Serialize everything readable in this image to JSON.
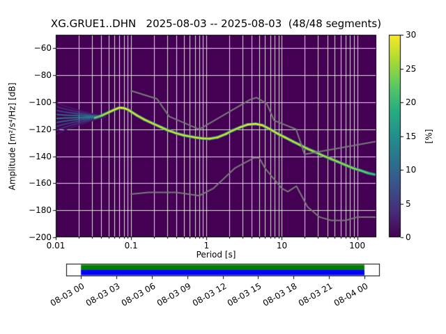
{
  "chart_data": {
    "type": "heatmap",
    "title": "XG.GRUE1..DHN   2025-08-03 -- 2025-08-03  (48/48 segments)",
    "xlabel": "Period [s]",
    "ylabel": "Amplitude [m²/s⁴/Hz] [dB]",
    "xscale": "log",
    "xlim": [
      0.01,
      179
    ],
    "ylim": [
      -200,
      -50
    ],
    "grid": true,
    "background_value_color": "#440154",
    "grid_color": "#ffffff",
    "x_ticks": [
      0.01,
      0.1,
      1,
      10,
      100
    ],
    "x_tick_labels": [
      "0.01",
      "0.1",
      "1",
      "10",
      "100"
    ],
    "y_ticks": [
      -200,
      -180,
      -160,
      -140,
      -120,
      -100,
      -80,
      -60
    ],
    "y_tick_labels": [
      "−200",
      "−180",
      "−160",
      "−140",
      "−120",
      "−100",
      "−80",
      "−60"
    ],
    "colorbar": {
      "label": "[%]",
      "min": 0,
      "max": 30,
      "ticks": [
        0,
        5,
        10,
        15,
        20,
        25,
        30
      ],
      "tick_labels": [
        "0",
        "5",
        "10",
        "15",
        "20",
        "25",
        "30"
      ],
      "colormap": "viridis"
    },
    "series": [
      {
        "name": "psd-mode-line",
        "type": "line",
        "units": [
          "period_s",
          "amplitude_db",
          "percent"
        ],
        "points": [
          [
            0.033,
            -111.5,
            22
          ],
          [
            0.04,
            -110,
            25
          ],
          [
            0.05,
            -107.5,
            28
          ],
          [
            0.06,
            -105.5,
            29
          ],
          [
            0.07,
            -104,
            30
          ],
          [
            0.08,
            -104.3,
            30
          ],
          [
            0.09,
            -105.3,
            29
          ],
          [
            0.1,
            -107,
            29
          ],
          [
            0.12,
            -109.8,
            28
          ],
          [
            0.15,
            -112.8,
            28
          ],
          [
            0.2,
            -116,
            28
          ],
          [
            0.25,
            -118.5,
            28
          ],
          [
            0.3,
            -120.5,
            28
          ],
          [
            0.4,
            -123,
            28
          ],
          [
            0.5,
            -124.5,
            28
          ],
          [
            0.7,
            -126,
            28
          ],
          [
            0.9,
            -126.8,
            28
          ],
          [
            1.1,
            -127,
            28
          ],
          [
            1.4,
            -126,
            28
          ],
          [
            1.8,
            -123.5,
            28
          ],
          [
            2.2,
            -121,
            28
          ],
          [
            2.8,
            -118.5,
            28
          ],
          [
            3.5,
            -116.5,
            29
          ],
          [
            4.5,
            -116,
            30
          ],
          [
            5.5,
            -117,
            29
          ],
          [
            7.0,
            -120,
            29
          ],
          [
            9.0,
            -123.5,
            28
          ],
          [
            11.0,
            -126,
            28
          ],
          [
            14.0,
            -129,
            28
          ],
          [
            18.0,
            -132,
            27
          ],
          [
            22.0,
            -134.5,
            27
          ],
          [
            28.0,
            -137,
            27
          ],
          [
            35.0,
            -139.5,
            26
          ],
          [
            45.0,
            -142,
            26
          ],
          [
            55.0,
            -144,
            26
          ],
          [
            70.0,
            -146.5,
            25
          ],
          [
            90.0,
            -149,
            25
          ],
          [
            110,
            -150.5,
            24
          ],
          [
            140,
            -152.5,
            22
          ],
          [
            170,
            -153.5,
            20
          ]
        ]
      },
      {
        "name": "short-period-spread",
        "type": "fan",
        "period_range": [
          0.01,
          0.045
        ],
        "target_db": -110.8,
        "lines": [
          {
            "db": -100,
            "pct": 2
          },
          {
            "db": -103,
            "pct": 4
          },
          {
            "db": -106,
            "pct": 7
          },
          {
            "db": -109,
            "pct": 11
          },
          {
            "db": -112,
            "pct": 14
          },
          {
            "db": -115,
            "pct": 10
          },
          {
            "db": -118,
            "pct": 6
          },
          {
            "db": -121,
            "pct": 4
          },
          {
            "db": -124,
            "pct": 2
          }
        ]
      },
      {
        "name": "noise-model-high-nhnm",
        "type": "line",
        "color": "#7a7a7a",
        "points": [
          [
            0.1,
            -91.5
          ],
          [
            0.22,
            -97.4
          ],
          [
            0.32,
            -110.5
          ],
          [
            0.8,
            -120.0
          ],
          [
            3.8,
            -98.0
          ],
          [
            4.6,
            -96.5
          ],
          [
            6.3,
            -101.0
          ],
          [
            7.9,
            -113.5
          ],
          [
            15.4,
            -120.0
          ],
          [
            20.0,
            -138.5
          ],
          [
            179,
            -129.0
          ]
        ]
      },
      {
        "name": "noise-model-low-nlnm",
        "type": "line",
        "color": "#7a7a7a",
        "points": [
          [
            0.1,
            -168.0
          ],
          [
            0.17,
            -166.7
          ],
          [
            0.4,
            -166.7
          ],
          [
            0.8,
            -169.2
          ],
          [
            1.24,
            -163.7
          ],
          [
            2.4,
            -148.6
          ],
          [
            4.3,
            -141.1
          ],
          [
            5.0,
            -141.1
          ],
          [
            6.0,
            -149.0
          ],
          [
            10.0,
            -163.8
          ],
          [
            12.0,
            -166.2
          ],
          [
            15.6,
            -162.1
          ],
          [
            21.9,
            -177.5
          ],
          [
            31.6,
            -185.0
          ],
          [
            45.0,
            -187.5
          ],
          [
            70.0,
            -187.5
          ],
          [
            101.0,
            -185.0
          ],
          [
            154.0,
            -185.0
          ],
          [
            179,
            -185.2
          ]
        ]
      }
    ]
  },
  "timeline": {
    "tick_labels": [
      "08-03 00",
      "08-03 03",
      "08-03 06",
      "08-03 09",
      "08-03 12",
      "08-03 15",
      "08-03 18",
      "08-03 21",
      "08-04 00"
    ],
    "coverage_frac": [
      0.047,
      0.951
    ],
    "bar_colors": {
      "top": "#008000",
      "bottom": "#0000ff"
    },
    "frame_color": "#000000"
  }
}
